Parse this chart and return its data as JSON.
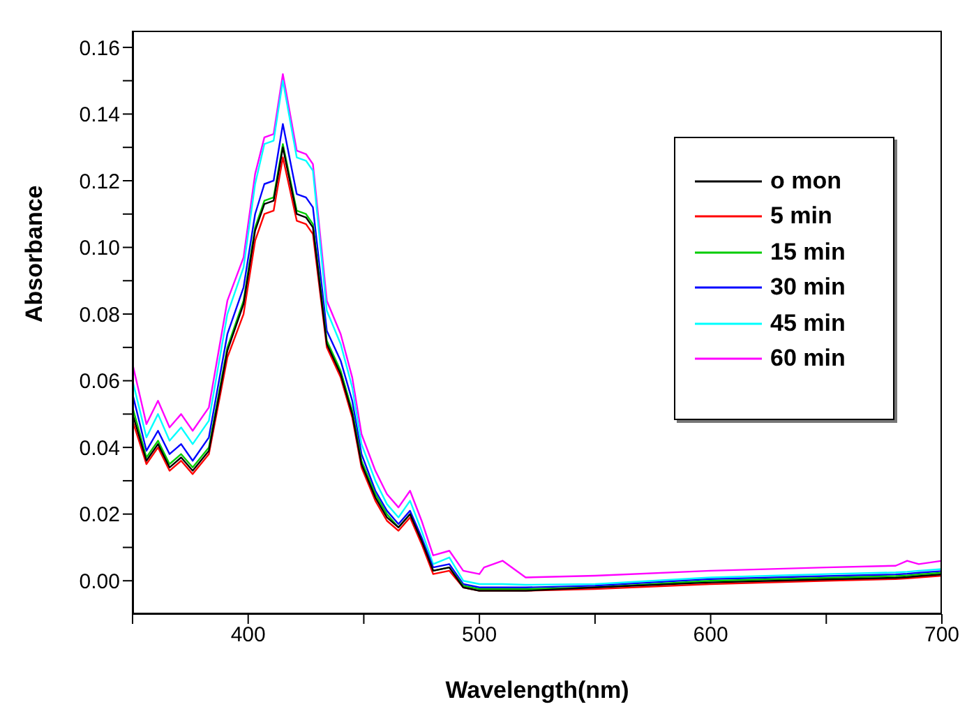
{
  "chart_data": {
    "type": "line",
    "xlabel": "Wavelength(nm)",
    "ylabel": "Absorbance",
    "x": [
      350,
      356,
      361,
      366,
      371,
      376,
      383,
      391,
      398,
      403,
      407,
      411,
      415,
      421,
      425,
      428,
      434,
      440,
      445,
      449,
      455,
      460,
      465,
      470,
      475,
      480,
      487,
      493,
      500,
      502,
      510,
      520,
      550,
      600,
      650,
      680,
      685,
      690,
      700
    ],
    "series": [
      {
        "name": "o mon",
        "color": "#000000",
        "values": [
          0.05,
          0.036,
          0.041,
          0.034,
          0.037,
          0.033,
          0.039,
          0.069,
          0.083,
          0.105,
          0.113,
          0.114,
          0.13,
          0.11,
          0.109,
          0.106,
          0.071,
          0.062,
          0.05,
          0.035,
          0.025,
          0.019,
          0.016,
          0.02,
          0.012,
          0.003,
          0.004,
          -0.002,
          -0.003,
          -0.003,
          -0.003,
          -0.003,
          -0.002,
          -0.0005,
          0.0004,
          0.0009,
          0.0011,
          0.0014,
          0.0019
        ]
      },
      {
        "name": "5 min",
        "color": "#ff0000",
        "values": [
          0.048,
          0.035,
          0.04,
          0.033,
          0.036,
          0.032,
          0.038,
          0.067,
          0.08,
          0.102,
          0.11,
          0.111,
          0.127,
          0.108,
          0.107,
          0.104,
          0.07,
          0.061,
          0.049,
          0.034,
          0.024,
          0.018,
          0.015,
          0.019,
          0.011,
          0.002,
          0.003,
          -0.002,
          -0.003,
          -0.003,
          -0.003,
          -0.003,
          -0.0025,
          -0.001,
          0.0,
          0.0005,
          0.0007,
          0.001,
          0.0015
        ]
      },
      {
        "name": "15 min",
        "color": "#00cc00",
        "values": [
          0.052,
          0.037,
          0.042,
          0.035,
          0.038,
          0.034,
          0.04,
          0.07,
          0.084,
          0.106,
          0.114,
          0.115,
          0.131,
          0.111,
          0.11,
          0.107,
          0.072,
          0.063,
          0.051,
          0.036,
          0.026,
          0.02,
          0.016,
          0.02,
          0.012,
          0.003,
          0.004,
          -0.0015,
          -0.0025,
          -0.0025,
          -0.0025,
          -0.0025,
          -0.002,
          0.0,
          0.0009,
          0.0014,
          0.0016,
          0.0019,
          0.0024
        ]
      },
      {
        "name": "30 min",
        "color": "#0000ff",
        "values": [
          0.056,
          0.039,
          0.045,
          0.038,
          0.041,
          0.036,
          0.043,
          0.074,
          0.088,
          0.11,
          0.119,
          0.12,
          0.137,
          0.116,
          0.115,
          0.112,
          0.075,
          0.066,
          0.054,
          0.038,
          0.027,
          0.021,
          0.017,
          0.021,
          0.013,
          0.004,
          0.005,
          -0.001,
          -0.002,
          -0.002,
          -0.002,
          -0.002,
          -0.0015,
          0.0005,
          0.0014,
          0.0019,
          0.0021,
          0.0024,
          0.0029
        ]
      },
      {
        "name": "45 min",
        "color": "#00ffff",
        "values": [
          0.06,
          0.043,
          0.05,
          0.042,
          0.046,
          0.041,
          0.048,
          0.08,
          0.094,
          0.119,
          0.131,
          0.132,
          0.15,
          0.127,
          0.126,
          0.123,
          0.081,
          0.071,
          0.058,
          0.041,
          0.03,
          0.023,
          0.019,
          0.024,
          0.015,
          0.005,
          0.007,
          0.0,
          -0.001,
          -0.001,
          -0.001,
          -0.0012,
          -0.001,
          0.001,
          0.002,
          0.0025,
          0.0027,
          0.003,
          0.0035
        ]
      },
      {
        "name": "60 min",
        "color": "#ff00ff",
        "values": [
          0.065,
          0.047,
          0.054,
          0.046,
          0.05,
          0.045,
          0.052,
          0.084,
          0.097,
          0.122,
          0.133,
          0.134,
          0.152,
          0.129,
          0.128,
          0.125,
          0.084,
          0.074,
          0.061,
          0.044,
          0.033,
          0.026,
          0.022,
          0.027,
          0.018,
          0.0076,
          0.009,
          0.003,
          0.002,
          0.004,
          0.006,
          0.001,
          0.0015,
          0.003,
          0.004,
          0.0045,
          0.006,
          0.005,
          0.006
        ]
      }
    ],
    "xlim": [
      350,
      700
    ],
    "xticks": [
      {
        "value": 350,
        "label": null
      },
      400,
      {
        "value": 450,
        "label": null
      },
      500,
      {
        "value": 550,
        "label": null
      },
      600,
      {
        "value": 650,
        "label": null
      },
      700
    ],
    "ylim": [
      -0.01,
      0.165
    ],
    "yticks": [
      {
        "value": 0,
        "label": "0.00"
      },
      {
        "value": 0.01,
        "label": null
      },
      {
        "value": 0.02,
        "label": "0.02"
      },
      {
        "value": 0.03,
        "label": null
      },
      {
        "value": 0.04,
        "label": "0.04"
      },
      {
        "value": 0.05,
        "label": null
      },
      {
        "value": 0.06,
        "label": "0.06"
      },
      {
        "value": 0.07,
        "label": null
      },
      {
        "value": 0.08,
        "label": "0.08"
      },
      {
        "value": 0.09,
        "label": null
      },
      {
        "value": 0.1,
        "label": "0.10"
      },
      {
        "value": 0.11,
        "label": null
      },
      {
        "value": 0.12,
        "label": "0.12"
      },
      {
        "value": 0.13,
        "label": null
      },
      {
        "value": 0.14,
        "label": "0.14"
      },
      {
        "value": 0.15,
        "label": null
      },
      {
        "value": 0.16,
        "label": "0.16"
      }
    ],
    "grid": false,
    "legend": "top right",
    "marker": "none",
    "line_style": "solid"
  }
}
